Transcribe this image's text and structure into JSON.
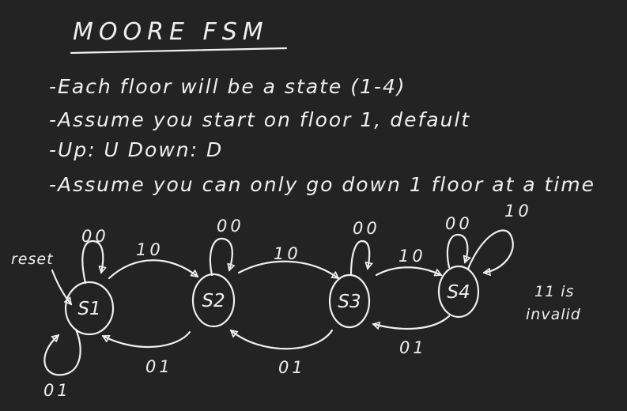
{
  "title": "MOORE FSM",
  "notes": [
    "-Each floor will be a state (1-4)",
    "-Assume you start on floor 1, default",
    "-Up: U  Down: D",
    "-Assume you can only go down 1 floor at a time"
  ],
  "states": [
    "S1",
    "S2",
    "S3",
    "S4"
  ],
  "reset_label": "reset",
  "transitions": {
    "s1_self": "00",
    "s2_self": "00",
    "s3_self": "00",
    "s4_self": "00",
    "s4_up_self": "10",
    "s1_down_self": "01",
    "s1_s2": "10",
    "s2_s3": "10",
    "s3_s4": "10",
    "s2_s1": "01",
    "s3_s2": "01",
    "s4_s3": "01"
  },
  "side_note": [
    "11 is",
    "invalid"
  ],
  "colors": {
    "background": "#232323",
    "ink": "#efefef"
  }
}
